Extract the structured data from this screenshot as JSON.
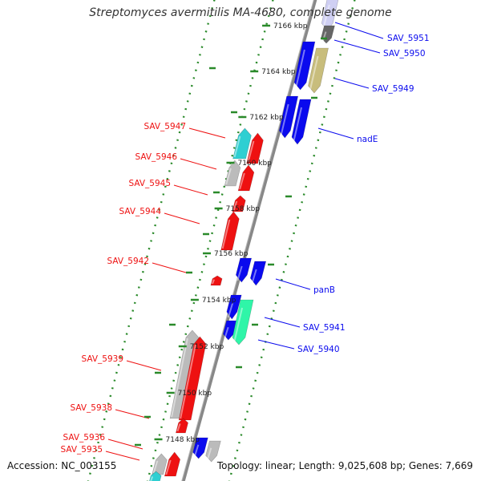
{
  "header": {
    "title": "Streptomyces avermitilis MA-4680, complete genome"
  },
  "footer": {
    "accession": "Accession: NC_003155",
    "summary": "Topology: linear; Length: 9,025,608 bp; Genes: 7,669"
  },
  "colors": {
    "forward": "#0a0aee",
    "reverse": "#ee1111",
    "grey": "#bbbbbb",
    "cyan": "#2ecfd2",
    "olive": "#c8bd7c",
    "seafoam": "#2ff5a8",
    "lavender": "#cfcff3",
    "darkgrey": "#666666",
    "backbone": "#888888",
    "tick": "#2a8a2a"
  },
  "scale_ticks": [
    "7166 kbp",
    "7164 kbp",
    "7162 kbp",
    "7160 kbp",
    "7158 kbp",
    "7156 kbp",
    "7154 kbp",
    "7152 kbp",
    "7150 kbp",
    "7148 kbp"
  ],
  "labels_right": [
    "SAV_5951",
    "SAV_5950",
    "SAV_5949",
    "nadE",
    "panB",
    "SAV_5941",
    "SAV_5940"
  ],
  "labels_left": [
    "SAV_5947",
    "SAV_5946",
    "SAV_5945",
    "SAV_5944",
    "SAV_5942",
    "SAV_5939",
    "SAV_5938",
    "SAV_5936",
    "SAV_5935"
  ]
}
